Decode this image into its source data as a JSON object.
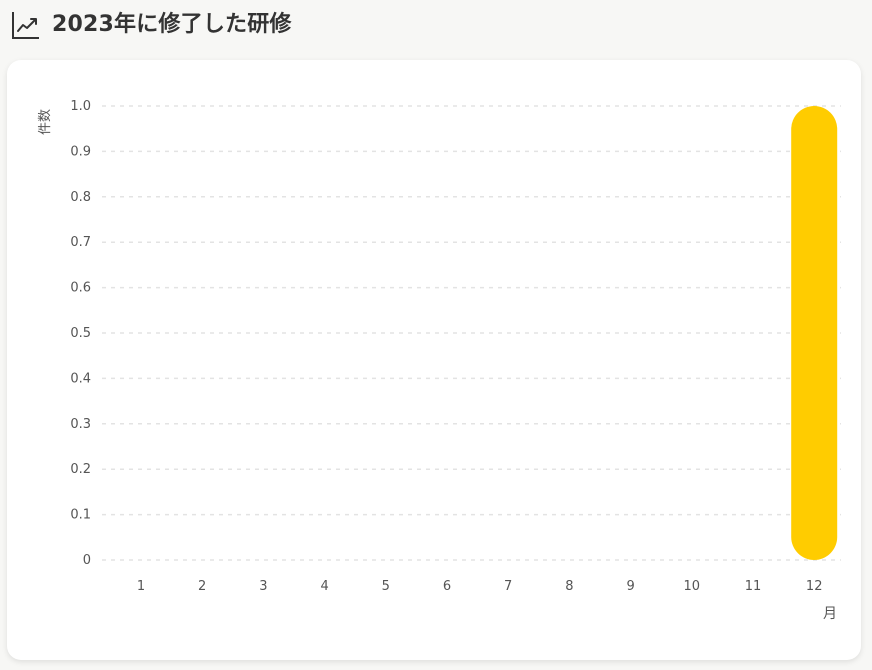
{
  "header": {
    "title": "2023年に修了した研修",
    "icon": "trend-chart-icon"
  },
  "chart_data": {
    "type": "bar",
    "categories": [
      "1",
      "2",
      "3",
      "4",
      "5",
      "6",
      "7",
      "8",
      "9",
      "10",
      "11",
      "12"
    ],
    "values": [
      0,
      0,
      0,
      0,
      0,
      0,
      0,
      0,
      0,
      0,
      0,
      1
    ],
    "title": "2023年に修了した研修",
    "xlabel": "月",
    "ylabel": "件数",
    "ylim": [
      0,
      1
    ],
    "yticks": [
      "0",
      "0.1",
      "0.2",
      "0.3",
      "0.4",
      "0.5",
      "0.6",
      "0.7",
      "0.8",
      "0.9",
      "1.0"
    ],
    "grid": true,
    "bar_color": "#FFCC00",
    "grid_color": "#e3e3e3"
  }
}
